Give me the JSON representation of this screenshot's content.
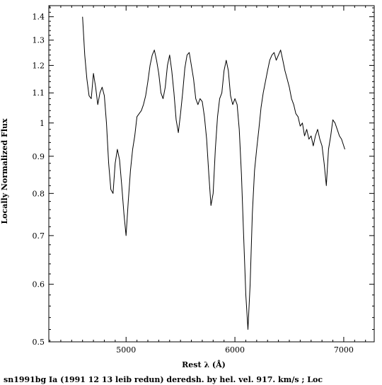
{
  "chart_data": {
    "type": "line",
    "xlabel": "Rest λ (Å)",
    "ylabel": "Locally Normalized Flux",
    "caption": "sn1991bg Ia (1991 12 13 leib redun) deredsh. by hel. vel.   917. km/s ;  Loc",
    "xlim": [
      4290,
      7280
    ],
    "ylim": [
      0.5,
      1.45
    ],
    "y_scale": "log",
    "x_ticks": [
      5000,
      6000,
      7000
    ],
    "x_tick_labels": [
      "5000",
      "6000",
      "7000"
    ],
    "y_ticks": [
      0.5,
      0.6,
      0.7,
      0.8,
      0.9,
      1,
      1.1,
      1.2,
      1.3,
      1.4
    ],
    "y_tick_labels": [
      "0.5",
      "0.6",
      "0.7",
      "0.8",
      "0.9",
      "1",
      "1.1",
      "1.2",
      "1.3",
      "1.4"
    ],
    "grid": false,
    "series": [
      {
        "color": "#000000",
        "x": [
          4600,
          4620,
          4640,
          4660,
          4680,
          4700,
          4720,
          4740,
          4760,
          4780,
          4800,
          4820,
          4840,
          4860,
          4880,
          4900,
          4920,
          4940,
          4960,
          4980,
          5000,
          5020,
          5040,
          5060,
          5080,
          5100,
          5120,
          5140,
          5160,
          5180,
          5200,
          5220,
          5240,
          5260,
          5280,
          5300,
          5320,
          5340,
          5360,
          5380,
          5400,
          5420,
          5440,
          5460,
          5480,
          5500,
          5520,
          5540,
          5560,
          5580,
          5600,
          5620,
          5640,
          5660,
          5680,
          5700,
          5720,
          5740,
          5760,
          5780,
          5800,
          5820,
          5840,
          5860,
          5880,
          5900,
          5920,
          5940,
          5960,
          5980,
          6000,
          6020,
          6040,
          6060,
          6080,
          6100,
          6120,
          6140,
          6160,
          6180,
          6200,
          6220,
          6240,
          6260,
          6280,
          6300,
          6320,
          6340,
          6360,
          6380,
          6400,
          6420,
          6440,
          6460,
          6480,
          6500,
          6520,
          6540,
          6560,
          6580,
          6600,
          6620,
          6640,
          6660,
          6680,
          6700,
          6720,
          6740,
          6760,
          6780,
          6800,
          6820,
          6840,
          6860,
          6880,
          6900,
          6920,
          6940,
          6960,
          6980,
          7000,
          7010
        ],
        "y": [
          1.4,
          1.24,
          1.15,
          1.09,
          1.08,
          1.17,
          1.12,
          1.06,
          1.1,
          1.12,
          1.09,
          1.0,
          0.88,
          0.81,
          0.8,
          0.88,
          0.92,
          0.89,
          0.82,
          0.75,
          0.7,
          0.78,
          0.86,
          0.92,
          0.96,
          1.02,
          1.03,
          1.04,
          1.06,
          1.09,
          1.14,
          1.2,
          1.24,
          1.26,
          1.22,
          1.17,
          1.1,
          1.08,
          1.12,
          1.2,
          1.24,
          1.18,
          1.1,
          1.01,
          0.97,
          1.03,
          1.1,
          1.19,
          1.24,
          1.25,
          1.2,
          1.15,
          1.08,
          1.06,
          1.08,
          1.07,
          1.02,
          0.95,
          0.85,
          0.77,
          0.8,
          0.92,
          1.02,
          1.08,
          1.1,
          1.18,
          1.22,
          1.18,
          1.09,
          1.06,
          1.08,
          1.06,
          0.98,
          0.85,
          0.7,
          0.58,
          0.52,
          0.6,
          0.75,
          0.86,
          0.92,
          0.98,
          1.05,
          1.1,
          1.14,
          1.18,
          1.22,
          1.24,
          1.25,
          1.22,
          1.24,
          1.26,
          1.22,
          1.18,
          1.15,
          1.12,
          1.08,
          1.06,
          1.03,
          1.02,
          0.99,
          1.0,
          0.96,
          0.98,
          0.95,
          0.96,
          0.93,
          0.96,
          0.98,
          0.95,
          0.93,
          0.88,
          0.82,
          0.92,
          0.96,
          1.01,
          1.0,
          0.98,
          0.96,
          0.95,
          0.93,
          0.92
        ]
      }
    ]
  }
}
